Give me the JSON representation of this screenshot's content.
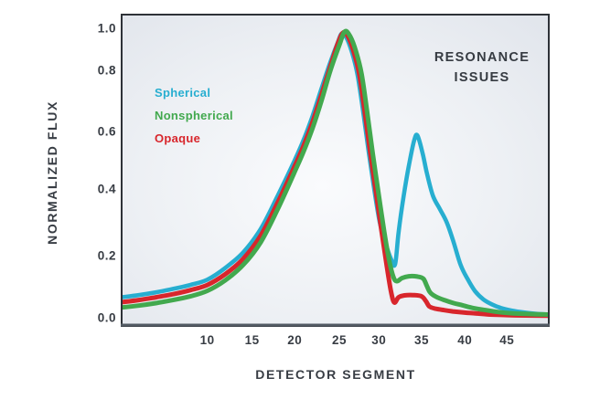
{
  "chart_data": {
    "type": "line",
    "title": "RESONANCE ISSUES",
    "annotation": {
      "line1": "RESONANCE",
      "line2": "ISSUES"
    },
    "xlabel": "DETECTOR SEGMENT",
    "ylabel": "NORMALIZED FLUX",
    "xlim": [
      0,
      49.5
    ],
    "ylim": [
      0.0,
      1.0
    ],
    "x_ticks": [
      10,
      15,
      20,
      25,
      30,
      35,
      40,
      45
    ],
    "y_ticks": [
      1.0,
      0.8,
      0.6,
      0.4,
      0.2,
      0.0
    ],
    "grid": false,
    "legend_position": "upper-left-inside",
    "series": [
      {
        "name": "Spherical",
        "color": "#27aed0",
        "stroke_width": 4.6,
        "zorder": 1,
        "points": [
          [
            0,
            0.065
          ],
          [
            2,
            0.072
          ],
          [
            4,
            0.081
          ],
          [
            6,
            0.092
          ],
          [
            8,
            0.105
          ],
          [
            10,
            0.122
          ],
          [
            12,
            0.16
          ],
          [
            14,
            0.21
          ],
          [
            16,
            0.28
          ],
          [
            18,
            0.38
          ],
          [
            20,
            0.5
          ],
          [
            21,
            0.57
          ],
          [
            22,
            0.65
          ],
          [
            23,
            0.74
          ],
          [
            24,
            0.84
          ],
          [
            24.8,
            0.93
          ],
          [
            25.3,
            0.975
          ],
          [
            25.9,
            0.955
          ],
          [
            26.6,
            0.885
          ],
          [
            27.3,
            0.785
          ],
          [
            28,
            0.665
          ],
          [
            28.7,
            0.53
          ],
          [
            29.4,
            0.4
          ],
          [
            30.1,
            0.3
          ],
          [
            30.8,
            0.235
          ],
          [
            31.4,
            0.19
          ],
          [
            31.9,
            0.172
          ],
          [
            32.3,
            0.27
          ],
          [
            32.9,
            0.38
          ],
          [
            33.5,
            0.48
          ],
          [
            34.1,
            0.565
          ],
          [
            34.5,
            0.585
          ],
          [
            35.1,
            0.525
          ],
          [
            35.6,
            0.455
          ],
          [
            36.3,
            0.38
          ],
          [
            37.1,
            0.34
          ],
          [
            37.9,
            0.3
          ],
          [
            38.7,
            0.24
          ],
          [
            39.5,
            0.17
          ],
          [
            40.3,
            0.125
          ],
          [
            41.2,
            0.085
          ],
          [
            42.2,
            0.058
          ],
          [
            43.2,
            0.042
          ],
          [
            44.2,
            0.031
          ],
          [
            45.5,
            0.022
          ],
          [
            47,
            0.015
          ],
          [
            48.3,
            0.011
          ],
          [
            49.5,
            0.009
          ]
        ]
      },
      {
        "name": "Nonspherical",
        "color": "#42a94e",
        "stroke_width": 5,
        "zorder": 3,
        "points": [
          [
            0,
            0.032
          ],
          [
            2,
            0.038
          ],
          [
            4,
            0.046
          ],
          [
            6,
            0.056
          ],
          [
            8,
            0.068
          ],
          [
            10,
            0.086
          ],
          [
            12,
            0.12
          ],
          [
            14,
            0.17
          ],
          [
            16,
            0.24
          ],
          [
            18,
            0.34
          ],
          [
            20,
            0.46
          ],
          [
            21,
            0.53
          ],
          [
            22,
            0.61
          ],
          [
            23,
            0.7
          ],
          [
            24,
            0.8
          ],
          [
            25,
            0.92
          ],
          [
            25.7,
            0.985
          ],
          [
            26.4,
            0.96
          ],
          [
            27.1,
            0.89
          ],
          [
            27.8,
            0.79
          ],
          [
            28.5,
            0.665
          ],
          [
            29.2,
            0.525
          ],
          [
            29.9,
            0.395
          ],
          [
            30.6,
            0.275
          ],
          [
            31.2,
            0.185
          ],
          [
            31.7,
            0.13
          ],
          [
            32.1,
            0.117
          ],
          [
            32.7,
            0.127
          ],
          [
            33.5,
            0.133
          ],
          [
            34.5,
            0.132
          ],
          [
            35.2,
            0.125
          ],
          [
            35.6,
            0.102
          ],
          [
            36,
            0.08
          ],
          [
            36.7,
            0.066
          ],
          [
            37.7,
            0.055
          ],
          [
            38.7,
            0.046
          ],
          [
            39.7,
            0.039
          ],
          [
            41,
            0.03
          ],
          [
            42.5,
            0.023
          ],
          [
            44,
            0.017
          ],
          [
            45.5,
            0.013
          ],
          [
            47,
            0.011
          ],
          [
            48.3,
            0.0095
          ],
          [
            49.5,
            0.009
          ]
        ]
      },
      {
        "name": "Opaque",
        "color": "#d8262c",
        "stroke_width": 5,
        "zorder": 2,
        "points": [
          [
            0,
            0.049
          ],
          [
            2,
            0.056
          ],
          [
            4,
            0.065
          ],
          [
            6,
            0.075
          ],
          [
            8,
            0.088
          ],
          [
            10,
            0.105
          ],
          [
            12,
            0.14
          ],
          [
            14,
            0.19
          ],
          [
            16,
            0.26
          ],
          [
            18,
            0.36
          ],
          [
            20,
            0.48
          ],
          [
            21,
            0.55
          ],
          [
            22,
            0.63
          ],
          [
            23,
            0.72
          ],
          [
            24,
            0.82
          ],
          [
            24.9,
            0.935
          ],
          [
            25.5,
            0.98
          ],
          [
            26.1,
            0.96
          ],
          [
            26.8,
            0.89
          ],
          [
            27.5,
            0.79
          ],
          [
            28.2,
            0.665
          ],
          [
            28.9,
            0.525
          ],
          [
            29.6,
            0.395
          ],
          [
            30.3,
            0.275
          ],
          [
            30.9,
            0.17
          ],
          [
            31.4,
            0.085
          ],
          [
            31.8,
            0.048
          ],
          [
            32.3,
            0.065
          ],
          [
            33,
            0.071
          ],
          [
            34,
            0.072
          ],
          [
            35,
            0.068
          ],
          [
            35.5,
            0.052
          ],
          [
            35.9,
            0.035
          ],
          [
            36.6,
            0.028
          ],
          [
            37.6,
            0.023
          ],
          [
            38.6,
            0.019
          ],
          [
            40,
            0.015
          ],
          [
            41.5,
            0.012
          ],
          [
            43,
            0.009
          ],
          [
            45,
            0.007
          ],
          [
            47,
            0.006
          ],
          [
            49.5,
            0.005
          ]
        ]
      }
    ]
  },
  "colors": {
    "text_dark": "#383d44",
    "plot_border": "#2e3238",
    "axis_baseline": "#535b64",
    "plot_bg_center": "#fafbfd",
    "plot_bg_mid": "#edf0f4",
    "plot_bg_edge": "#e1e5ec",
    "page_bg": "#ffffff"
  }
}
